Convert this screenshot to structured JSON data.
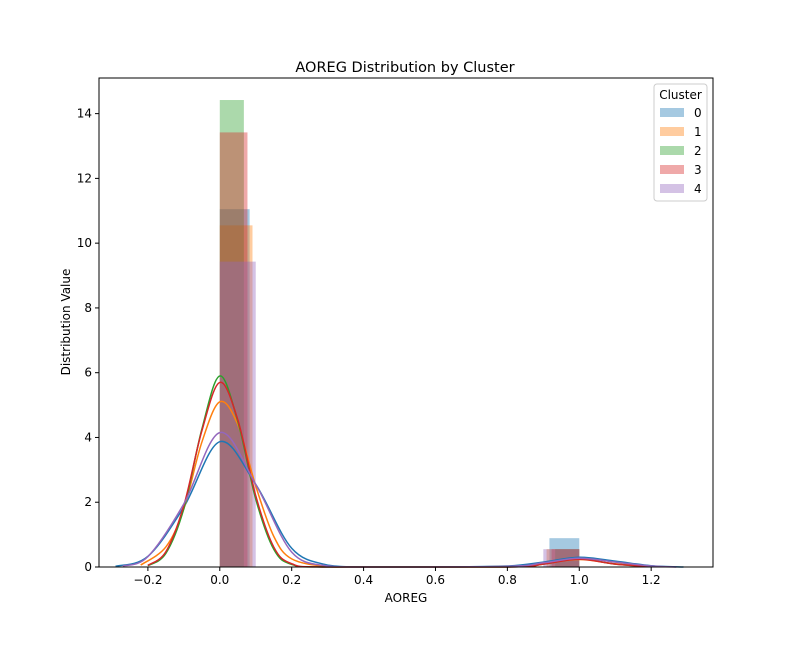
{
  "chart_data": {
    "type": "histogram+kde",
    "title": "AOREG Distribution by Cluster",
    "xlabel": "AOREG",
    "ylabel": "Distribution Value",
    "xlim": [
      -0.336,
      1.372
    ],
    "ylim": [
      0,
      15.1
    ],
    "xticks": [
      -0.2,
      0.0,
      0.2,
      0.4,
      0.6,
      0.8,
      1.0,
      1.2
    ],
    "xtick_labels": [
      "−0.2",
      "0.0",
      "0.2",
      "0.4",
      "0.6",
      "0.8",
      "1.0",
      "1.2"
    ],
    "yticks": [
      0,
      2,
      4,
      6,
      8,
      10,
      12,
      14
    ],
    "ytick_labels": [
      "0",
      "2",
      "4",
      "6",
      "8",
      "10",
      "12",
      "14"
    ],
    "legend": {
      "title": "Cluster",
      "position": "top-right"
    },
    "grid": false,
    "series": [
      {
        "name": "0",
        "color": "#1f77b4",
        "bins": [
          {
            "x0": 0.0,
            "x1": 0.083,
            "value": 11.05
          },
          {
            "x0": 0.917,
            "x1": 1.0,
            "value": 0.89
          }
        ],
        "kde": [
          [
            -0.29,
            0.02
          ],
          [
            -0.2,
            0.33
          ],
          [
            -0.1,
            1.85
          ],
          [
            0.0,
            3.87
          ],
          [
            0.1,
            2.55
          ],
          [
            0.2,
            0.58
          ],
          [
            0.3,
            0.06
          ],
          [
            0.4,
            0.0
          ],
          [
            0.6,
            0.0
          ],
          [
            0.8,
            0.03
          ],
          [
            0.9,
            0.15
          ],
          [
            1.0,
            0.3
          ],
          [
            1.1,
            0.18
          ],
          [
            1.2,
            0.04
          ],
          [
            1.29,
            0.0
          ]
        ]
      },
      {
        "name": "1",
        "color": "#ff7f0e",
        "bins": [
          {
            "x0": 0.0,
            "x1": 0.091,
            "value": 10.55
          },
          {
            "x0": 0.909,
            "x1": 1.0,
            "value": 0.55
          }
        ],
        "kde": [
          [
            -0.22,
            0.06
          ],
          [
            -0.15,
            0.62
          ],
          [
            -0.1,
            1.8
          ],
          [
            -0.05,
            3.85
          ],
          [
            0.0,
            5.1
          ],
          [
            0.05,
            4.4
          ],
          [
            0.1,
            2.5
          ],
          [
            0.15,
            0.95
          ],
          [
            0.2,
            0.25
          ],
          [
            0.3,
            0.01
          ],
          [
            0.4,
            0.0
          ],
          [
            0.8,
            0.01
          ],
          [
            0.9,
            0.1
          ],
          [
            1.0,
            0.23
          ],
          [
            1.1,
            0.1
          ],
          [
            1.22,
            0.01
          ]
        ]
      },
      {
        "name": "2",
        "color": "#2ca02c",
        "bins": [
          {
            "x0": 0.0,
            "x1": 0.067,
            "value": 14.42
          },
          {
            "x0": 0.933,
            "x1": 1.0,
            "value": 0.55
          }
        ],
        "kde": [
          [
            -0.2,
            0.04
          ],
          [
            -0.15,
            0.42
          ],
          [
            -0.1,
            1.8
          ],
          [
            -0.05,
            4.25
          ],
          [
            0.0,
            5.9
          ],
          [
            0.05,
            4.5
          ],
          [
            0.1,
            2.1
          ],
          [
            0.15,
            0.55
          ],
          [
            0.2,
            0.08
          ],
          [
            0.3,
            0.0
          ],
          [
            0.8,
            0.0
          ],
          [
            0.9,
            0.09
          ],
          [
            1.0,
            0.25
          ],
          [
            1.1,
            0.09
          ],
          [
            1.2,
            0.01
          ]
        ]
      },
      {
        "name": "3",
        "color": "#d62728",
        "bins": [
          {
            "x0": 0.0,
            "x1": 0.077,
            "value": 13.42
          },
          {
            "x0": 0.923,
            "x1": 1.0,
            "value": 0.55
          }
        ],
        "kde": [
          [
            -0.2,
            0.05
          ],
          [
            -0.15,
            0.47
          ],
          [
            -0.1,
            1.9
          ],
          [
            -0.05,
            4.2
          ],
          [
            0.0,
            5.7
          ],
          [
            0.05,
            4.55
          ],
          [
            0.1,
            2.2
          ],
          [
            0.15,
            0.62
          ],
          [
            0.2,
            0.1
          ],
          [
            0.3,
            0.0
          ],
          [
            0.8,
            0.0
          ],
          [
            0.9,
            0.09
          ],
          [
            1.0,
            0.24
          ],
          [
            1.1,
            0.09
          ],
          [
            1.2,
            0.01
          ]
        ]
      },
      {
        "name": "4",
        "color": "#9467bd",
        "bins": [
          {
            "x0": 0.0,
            "x1": 0.1,
            "value": 9.43
          },
          {
            "x0": 0.9,
            "x1": 1.0,
            "value": 0.55
          }
        ],
        "kde": [
          [
            -0.27,
            0.03
          ],
          [
            -0.2,
            0.32
          ],
          [
            -0.1,
            1.95
          ],
          [
            0.0,
            4.15
          ],
          [
            0.1,
            2.55
          ],
          [
            0.2,
            0.46
          ],
          [
            0.3,
            0.03
          ],
          [
            0.4,
            0.0
          ],
          [
            0.8,
            0.02
          ],
          [
            0.9,
            0.13
          ],
          [
            1.0,
            0.27
          ],
          [
            1.1,
            0.15
          ],
          [
            1.2,
            0.03
          ],
          [
            1.27,
            0.0
          ]
        ]
      }
    ]
  }
}
